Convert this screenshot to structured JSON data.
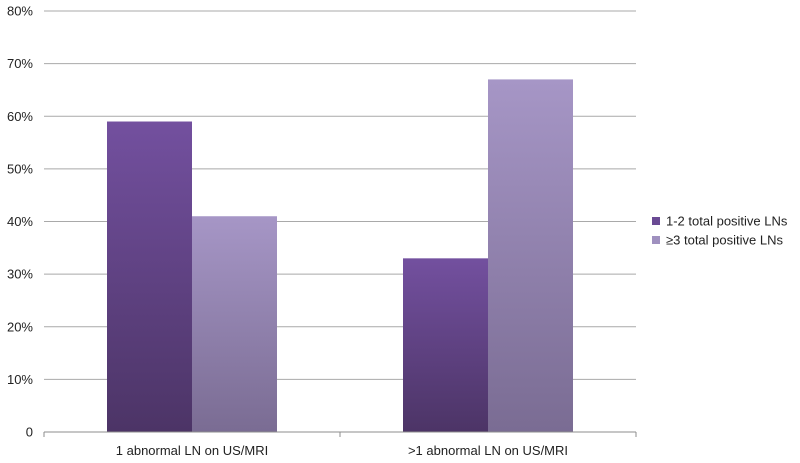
{
  "chart_data": {
    "type": "bar",
    "categories": [
      "1 abnormal LN on US/MRI",
      ">1 abnormal LN on US/MRI"
    ],
    "series": [
      {
        "name": "1-2 total positive LNs",
        "values": [
          59,
          33
        ],
        "color": "#6a4a94"
      },
      {
        "name": "≥3 total positive LNs",
        "values": [
          41,
          67
        ],
        "color": "#9f90bf"
      }
    ],
    "y_ticks": [
      "0",
      "10%",
      "20%",
      "30%",
      "40%",
      "50%",
      "60%",
      "70%",
      "80%"
    ],
    "ylim": [
      0,
      80
    ],
    "grid": true,
    "legend": "right"
  }
}
